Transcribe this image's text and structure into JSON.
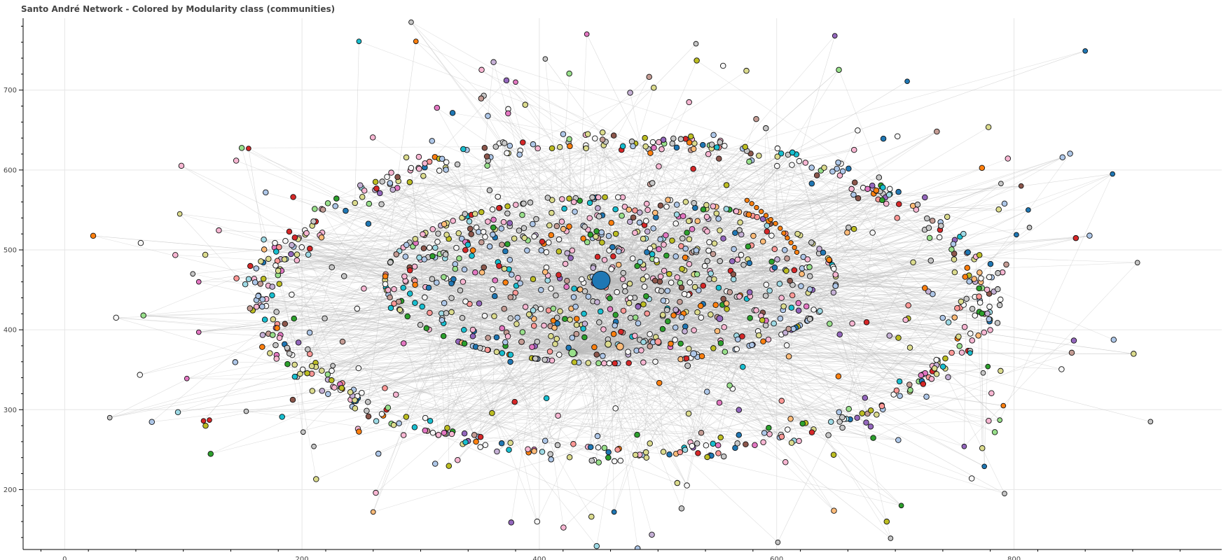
{
  "chart_data": {
    "type": "scatter",
    "title": "Santo André Network - Colored by Modularity class (communities)",
    "xlabel": "",
    "ylabel": "",
    "xlim": [
      -35,
      975
    ],
    "ylim": [
      125,
      790
    ],
    "x_ticks": [
      0,
      200,
      400,
      600,
      800
    ],
    "y_ticks": [
      200,
      300,
      400,
      500,
      600,
      700
    ],
    "grid": true,
    "legend": "none",
    "edge_color": "#bbbbbb",
    "palette": [
      "#1f77b4",
      "#ff7f0e",
      "#2ca02c",
      "#d62728",
      "#9467bd",
      "#8c564b",
      "#e377c2",
      "#f7b6d2",
      "#c7c7c7",
      "#bcbd22",
      "#dbdb8d",
      "#17becf",
      "#9edae5",
      "#aec7e8",
      "#ffbb78",
      "#98df8a",
      "#ff9896",
      "#c5b0d5",
      "#c49c94",
      "#f7f7f7"
    ],
    "series": [
      {
        "structure": "hub nodes",
        "points": [
          {
            "x": 452,
            "y": 462,
            "size": 26,
            "color": "#1f77b4"
          },
          {
            "x": 428,
            "y": 371,
            "size": 11,
            "color": "#98df8a"
          },
          {
            "x": 468,
            "y": 379,
            "size": 10,
            "color": "#ffbb78"
          },
          {
            "x": 552,
            "y": 414,
            "size": 9,
            "color": "#9467bd"
          },
          {
            "x": 530,
            "y": 370,
            "size": 9,
            "color": "#aec7e8"
          },
          {
            "x": 525,
            "y": 355,
            "size": 8,
            "color": "#c7c7c7"
          },
          {
            "x": 500,
            "y": 385,
            "size": 9,
            "color": "#ff9896"
          },
          {
            "x": 458,
            "y": 382,
            "size": 9,
            "color": "#dbdb8d"
          },
          {
            "x": 385,
            "y": 385,
            "size": 8,
            "color": "#c49c94"
          }
        ]
      },
      {
        "structure": "outlying nodes",
        "points": [
          {
            "x": 38,
            "y": 290,
            "color": "#c7c7c7"
          },
          {
            "x": 97,
            "y": 545,
            "color": "#dbdb8d"
          },
          {
            "x": 155,
            "y": 627,
            "color": "#d62728"
          },
          {
            "x": 108,
            "y": 470,
            "color": "#c7c7c7"
          },
          {
            "x": 113,
            "y": 460,
            "color": "#e377c2"
          },
          {
            "x": 113,
            "y": 397,
            "color": "#e377c2"
          },
          {
            "x": 103,
            "y": 339,
            "color": "#e377c2"
          },
          {
            "x": 117,
            "y": 286,
            "color": "#d62728"
          },
          {
            "x": 122,
            "y": 287,
            "color": "#d62728"
          },
          {
            "x": 153,
            "y": 298,
            "color": "#c7c7c7"
          },
          {
            "x": 248,
            "y": 761,
            "color": "#17becf"
          },
          {
            "x": 296,
            "y": 761,
            "color": "#ff7f0e"
          },
          {
            "x": 292,
            "y": 785,
            "color": "#c7c7c7"
          },
          {
            "x": 440,
            "y": 770,
            "color": "#e377c2"
          },
          {
            "x": 649,
            "y": 768,
            "color": "#9467bd"
          },
          {
            "x": 532,
            "y": 758,
            "color": "#c7c7c7"
          },
          {
            "x": 710,
            "y": 711,
            "color": "#1f77b4"
          },
          {
            "x": 860,
            "y": 749,
            "color": "#1f77b4"
          },
          {
            "x": 883,
            "y": 595,
            "color": "#1f77b4"
          },
          {
            "x": 915,
            "y": 285,
            "color": "#c7c7c7"
          },
          {
            "x": 904,
            "y": 484,
            "color": "#c7c7c7"
          },
          {
            "x": 813,
            "y": 528,
            "color": "#c7c7c7"
          },
          {
            "x": 802,
            "y": 519,
            "color": "#1f77b4"
          },
          {
            "x": 812,
            "y": 550,
            "color": "#1f77b4"
          },
          {
            "x": 789,
            "y": 583,
            "color": "#c7c7c7"
          },
          {
            "x": 806,
            "y": 580,
            "color": "#8c564b"
          },
          {
            "x": 791,
            "y": 305,
            "color": "#ff7f0e"
          },
          {
            "x": 788,
            "y": 287,
            "color": "#98df8a"
          },
          {
            "x": 778,
            "y": 354,
            "color": "#2ca02c"
          },
          {
            "x": 758,
            "y": 254,
            "color": "#9467bd"
          },
          {
            "x": 792,
            "y": 195,
            "color": "#c7c7c7"
          },
          {
            "x": 705,
            "y": 180,
            "color": "#2ca02c"
          },
          {
            "x": 696,
            "y": 139,
            "color": "#c7c7c7"
          },
          {
            "x": 601,
            "y": 134,
            "color": "#c7c7c7"
          },
          {
            "x": 260,
            "y": 172,
            "color": "#ffbb78"
          },
          {
            "x": 226,
            "y": 355,
            "color": "#c7c7c7"
          },
          {
            "x": 201,
            "y": 272,
            "color": "#c7c7c7"
          },
          {
            "x": 210,
            "y": 254,
            "color": "#c7c7c7"
          },
          {
            "x": 463,
            "y": 172,
            "color": "#1f77b4"
          },
          {
            "x": 405,
            "y": 739,
            "color": "#c7c7c7"
          },
          {
            "x": 380,
            "y": 710,
            "color": "#e377c2"
          },
          {
            "x": 763,
            "y": 371,
            "color": "#17becf"
          },
          {
            "x": 774,
            "y": 346,
            "color": "#c7c7c7"
          },
          {
            "x": 775,
            "y": 229,
            "color": "#1f77b4"
          }
        ]
      },
      {
        "structure": "arc of community nodes",
        "points": [
          {
            "x": 575,
            "y": 562,
            "color": "#ff7f0e"
          },
          {
            "x": 579,
            "y": 558,
            "color": "#ff7f0e"
          },
          {
            "x": 583,
            "y": 553,
            "color": "#ff7f0e"
          },
          {
            "x": 587,
            "y": 548,
            "color": "#ff7f0e"
          },
          {
            "x": 591,
            "y": 543,
            "color": "#ff7f0e"
          },
          {
            "x": 595,
            "y": 538,
            "color": "#ff7f0e"
          },
          {
            "x": 599,
            "y": 533,
            "color": "#ff7f0e"
          },
          {
            "x": 603,
            "y": 527,
            "color": "#ff7f0e"
          },
          {
            "x": 606,
            "y": 521,
            "color": "#ff7f0e"
          },
          {
            "x": 609,
            "y": 515,
            "color": "#ff7f0e"
          },
          {
            "x": 612,
            "y": 509,
            "color": "#ff7f0e"
          },
          {
            "x": 615,
            "y": 503,
            "color": "#ff7f0e"
          },
          {
            "x": 617,
            "y": 497,
            "color": "#ff7f0e"
          }
        ]
      }
    ]
  }
}
